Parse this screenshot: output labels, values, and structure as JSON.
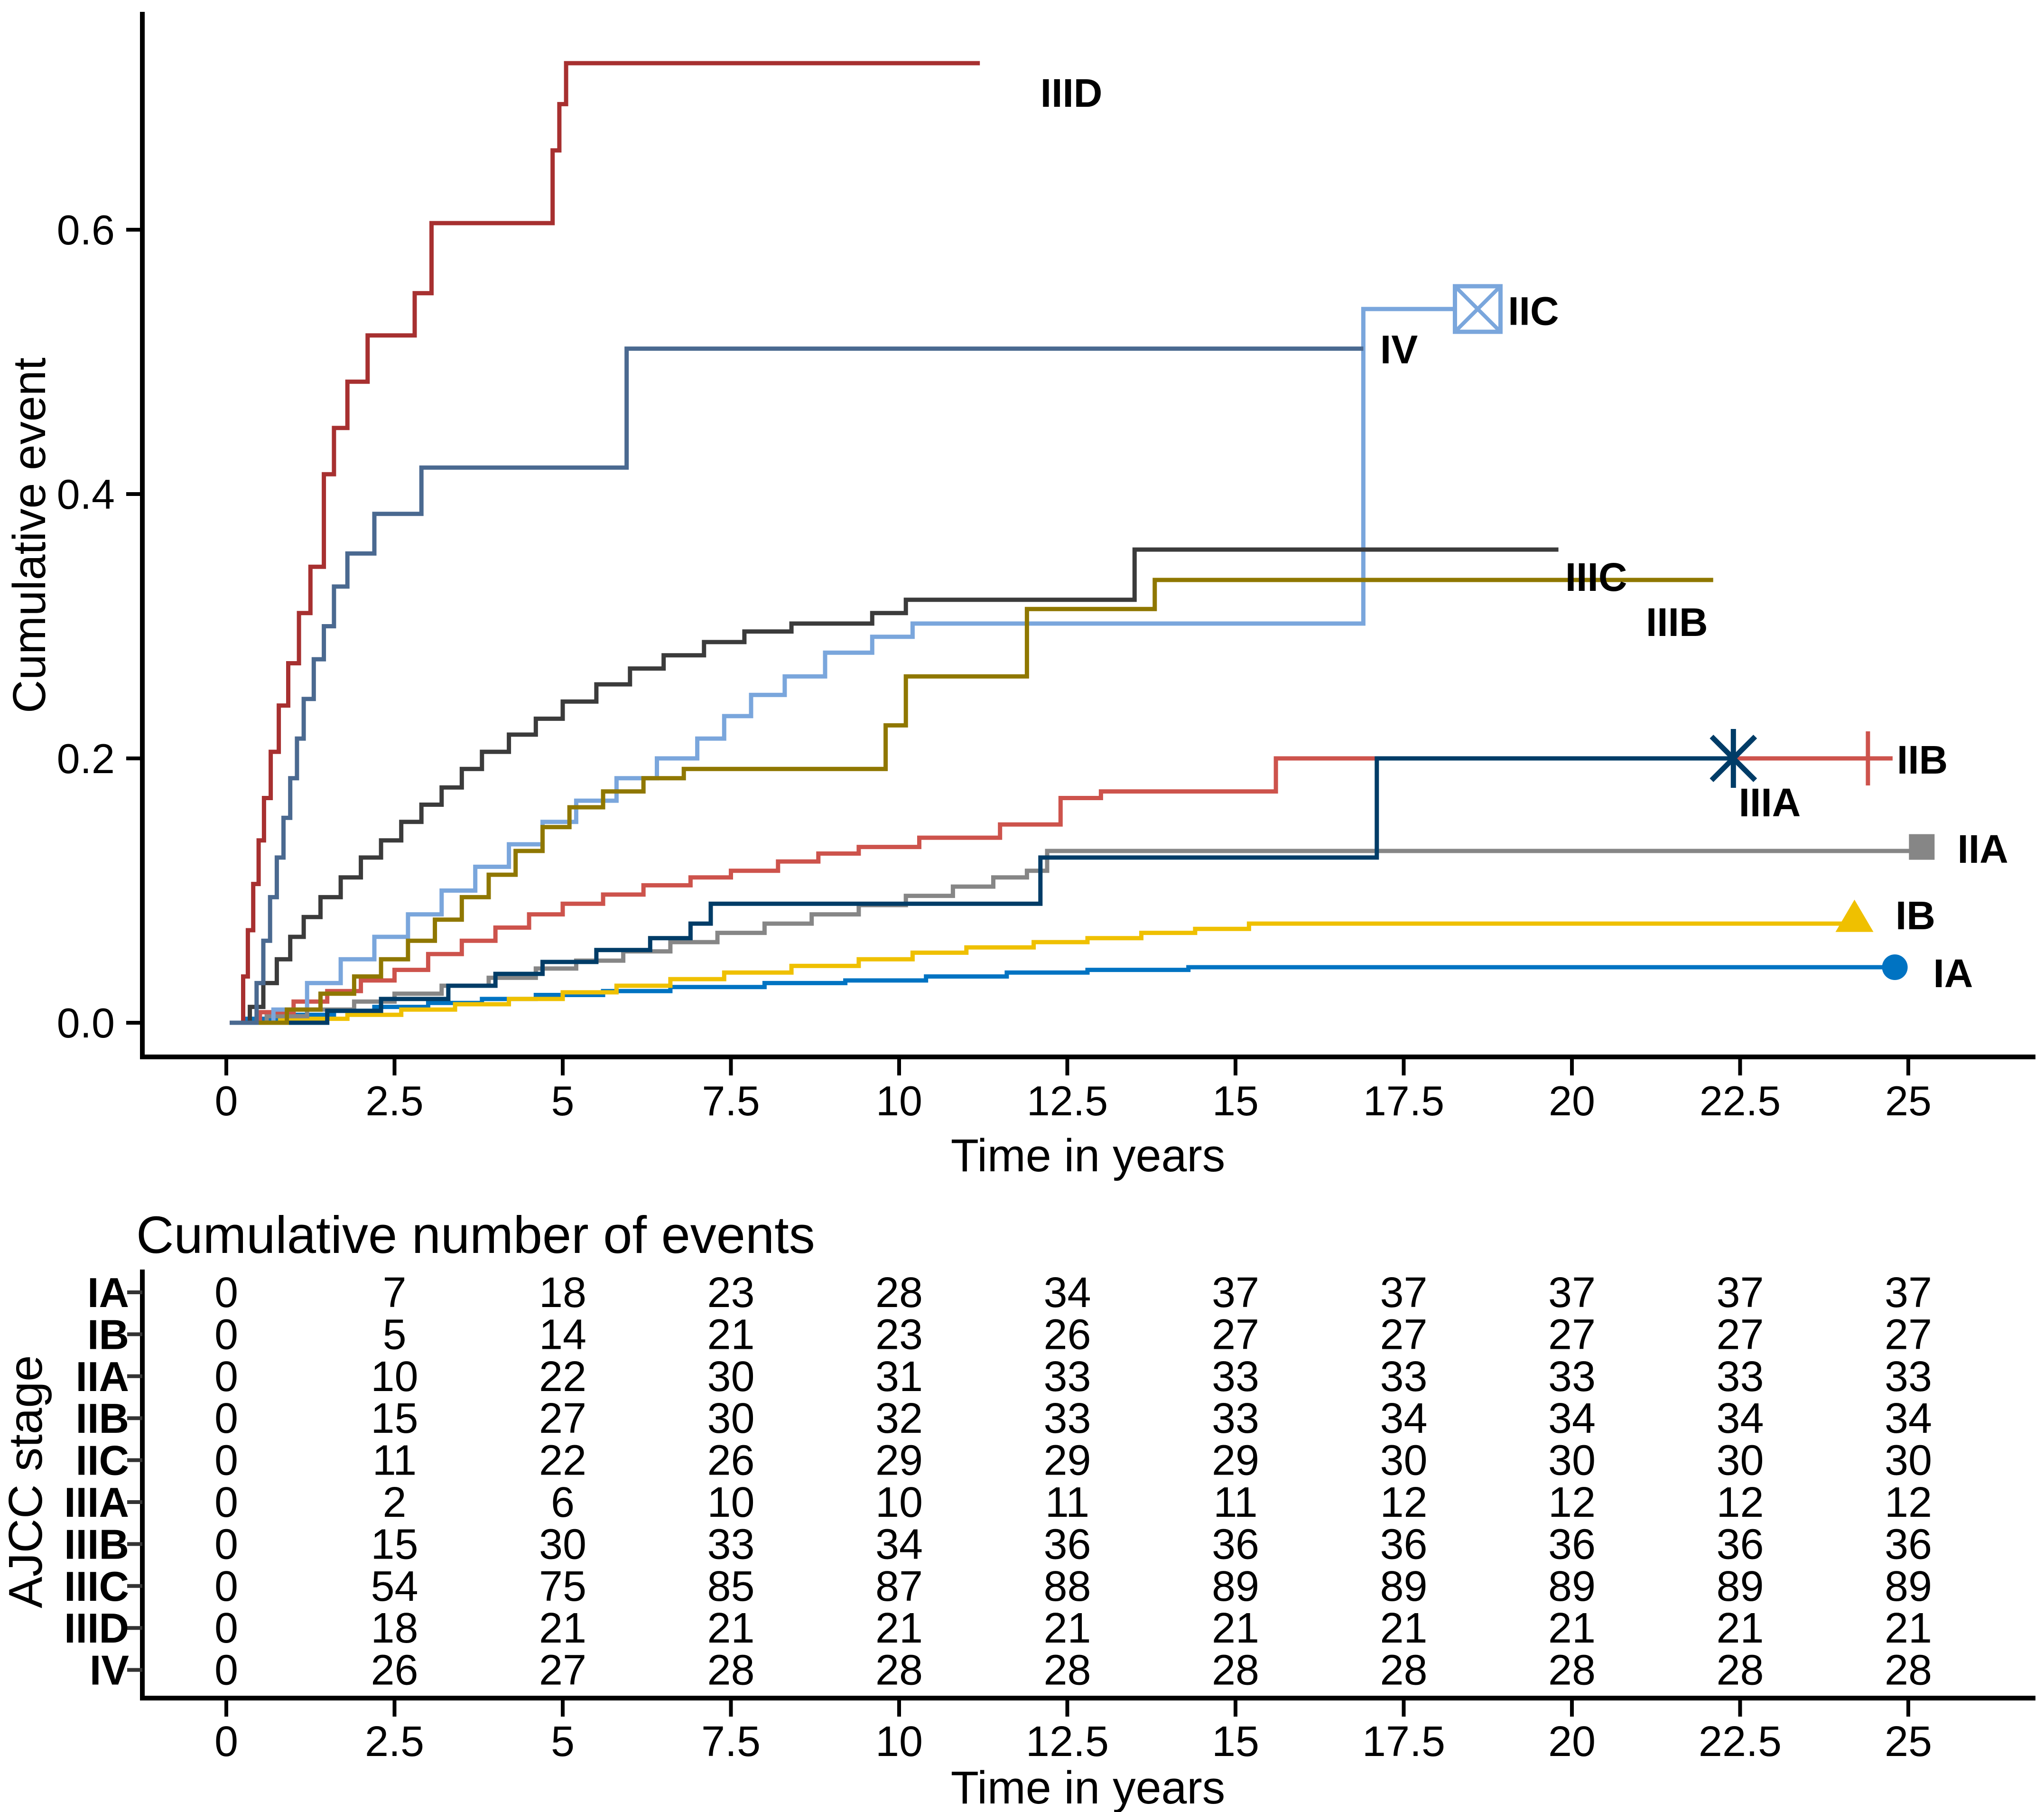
{
  "chart_data": [
    {
      "type": "line",
      "subtype": "cumulative-incidence-step-curves",
      "title": "",
      "xlabel": "Time in years",
      "ylabel": "Cumulative event",
      "x_ticks": [
        "0",
        "2.5",
        "5",
        "7.5",
        "10",
        "12.5",
        "15",
        "17.5",
        "20",
        "22.5",
        "25"
      ],
      "y_ticks": [
        "0.0",
        "0.2",
        "0.4",
        "0.6"
      ],
      "xlim": [
        0,
        25
      ],
      "ylim": [
        0,
        0.75
      ],
      "grid": "off",
      "legend_position": "labels-at-curve-ends",
      "series": [
        {
          "id": "IA",
          "label": "IA",
          "color": "#0073C2",
          "marker": "circle",
          "end": 24.8,
          "marker_at": [
            24.8,
            0.042
          ],
          "label_at": [
            25.37,
            0.0269
          ],
          "steps": [
            [
              0.3,
              0.003
            ],
            [
              1.0,
              0.006
            ],
            [
              1.6,
              0.009
            ],
            [
              2.2,
              0.012
            ],
            [
              3.0,
              0.015
            ],
            [
              3.8,
              0.018
            ],
            [
              4.6,
              0.021
            ],
            [
              5.6,
              0.024
            ],
            [
              6.6,
              0.027
            ],
            [
              8.0,
              0.03
            ],
            [
              9.2,
              0.032
            ],
            [
              10.4,
              0.035
            ],
            [
              11.6,
              0.038
            ],
            [
              12.8,
              0.04
            ],
            [
              14.3,
              0.042
            ]
          ]
        },
        {
          "id": "IB",
          "label": "IB",
          "color": "#EFC000",
          "marker": "triangle",
          "end": 24.2,
          "marker_at": [
            24.2,
            0.0795
          ],
          "label_at": [
            24.81,
            0.0707
          ],
          "steps": [
            [
              0.8,
              0.003
            ],
            [
              1.8,
              0.006
            ],
            [
              2.6,
              0.01
            ],
            [
              3.4,
              0.014
            ],
            [
              4.2,
              0.018
            ],
            [
              5.0,
              0.023
            ],
            [
              5.8,
              0.028
            ],
            [
              6.6,
              0.033
            ],
            [
              7.4,
              0.038
            ],
            [
              8.4,
              0.043
            ],
            [
              9.4,
              0.048
            ],
            [
              10.2,
              0.053
            ],
            [
              11.0,
              0.057
            ],
            [
              12.0,
              0.061
            ],
            [
              12.8,
              0.064
            ],
            [
              13.6,
              0.068
            ],
            [
              14.4,
              0.071
            ],
            [
              15.2,
              0.075
            ]
          ]
        },
        {
          "id": "IIA",
          "label": "IIA",
          "color": "#868686",
          "marker": "square",
          "end": 25.2,
          "marker_at": [
            25.2,
            0.133
          ],
          "label_at": [
            25.73,
            0.121
          ],
          "steps": [
            [
              0.6,
              0.005
            ],
            [
              1.2,
              0.01
            ],
            [
              1.9,
              0.016
            ],
            [
              2.5,
              0.022
            ],
            [
              3.2,
              0.028
            ],
            [
              3.9,
              0.034
            ],
            [
              4.6,
              0.041
            ],
            [
              5.2,
              0.047
            ],
            [
              5.9,
              0.054
            ],
            [
              6.6,
              0.061
            ],
            [
              7.3,
              0.068
            ],
            [
              8.0,
              0.075
            ],
            [
              8.7,
              0.082
            ],
            [
              9.4,
              0.089
            ],
            [
              10.1,
              0.096
            ],
            [
              10.8,
              0.103
            ],
            [
              11.4,
              0.11
            ],
            [
              11.9,
              0.115
            ],
            [
              12.2,
              0.13
            ]
          ]
        },
        {
          "id": "IIB",
          "label": "IIB",
          "color": "#CD534C",
          "marker": "plus",
          "end": 24.4,
          "marker_at": [
            24.4,
            0.2
          ],
          "label_at": [
            24.83,
            0.1885
          ],
          "steps": [
            [
              0.5,
              0.008
            ],
            [
              1.0,
              0.016
            ],
            [
              1.5,
              0.024
            ],
            [
              2.0,
              0.032
            ],
            [
              2.5,
              0.04
            ],
            [
              3.0,
              0.052
            ],
            [
              3.5,
              0.062
            ],
            [
              4.0,
              0.072
            ],
            [
              4.5,
              0.082
            ],
            [
              5.0,
              0.09
            ],
            [
              5.6,
              0.097
            ],
            [
              6.2,
              0.104
            ],
            [
              6.9,
              0.11
            ],
            [
              7.5,
              0.115
            ],
            [
              8.2,
              0.122
            ],
            [
              8.8,
              0.128
            ],
            [
              9.4,
              0.133
            ],
            [
              10.3,
              0.14
            ],
            [
              11.5,
              0.15
            ],
            [
              12.4,
              0.17
            ],
            [
              13.0,
              0.175
            ],
            [
              15.6,
              0.2
            ]
          ]
        },
        {
          "id": "IIC",
          "label": "IIC",
          "color": "#7AA6DC",
          "marker": "boxed-x",
          "end": 18.6,
          "marker_at": [
            18.6,
            0.54
          ],
          "label_at": [
            19.05,
            0.528
          ],
          "steps": [
            [
              0.7,
              0.01
            ],
            [
              1.2,
              0.03
            ],
            [
              1.7,
              0.048
            ],
            [
              2.2,
              0.065
            ],
            [
              2.7,
              0.082
            ],
            [
              3.2,
              0.1
            ],
            [
              3.7,
              0.118
            ],
            [
              4.2,
              0.135
            ],
            [
              4.7,
              0.152
            ],
            [
              5.2,
              0.168
            ],
            [
              5.8,
              0.185
            ],
            [
              6.4,
              0.2
            ],
            [
              7.0,
              0.215
            ],
            [
              7.4,
              0.232
            ],
            [
              7.8,
              0.248
            ],
            [
              8.3,
              0.262
            ],
            [
              8.9,
              0.28
            ],
            [
              9.6,
              0.292
            ],
            [
              10.2,
              0.302
            ],
            [
              16.9,
              0.54
            ]
          ]
        },
        {
          "id": "IIIA",
          "label": "IIIA",
          "color": "#003C67",
          "marker": "asterisk",
          "end": 22.4,
          "marker_at": [
            22.4,
            0.2
          ],
          "label_at": [
            22.48,
            0.1562
          ],
          "steps": [
            [
              1.5,
              0.009
            ],
            [
              2.3,
              0.018
            ],
            [
              3.3,
              0.028
            ],
            [
              4.0,
              0.037
            ],
            [
              4.7,
              0.046
            ],
            [
              5.5,
              0.055
            ],
            [
              6.3,
              0.064
            ],
            [
              6.9,
              0.075
            ],
            [
              7.2,
              0.09
            ],
            [
              12.1,
              0.125
            ],
            [
              17.1,
              0.2
            ]
          ]
        },
        {
          "id": "IIIB",
          "label": "IIIB",
          "color": "#8F7700",
          "marker": "none",
          "end": 22.1,
          "marker_at": null,
          "label_at": [
            21.1,
            0.2926
          ],
          "steps": [
            [
              0.9,
              0.01
            ],
            [
              1.4,
              0.022
            ],
            [
              1.9,
              0.035
            ],
            [
              2.3,
              0.048
            ],
            [
              2.7,
              0.062
            ],
            [
              3.1,
              0.078
            ],
            [
              3.5,
              0.095
            ],
            [
              3.9,
              0.112
            ],
            [
              4.3,
              0.13
            ],
            [
              4.7,
              0.148
            ],
            [
              5.1,
              0.163
            ],
            [
              5.6,
              0.175
            ],
            [
              6.2,
              0.185
            ],
            [
              6.8,
              0.192
            ],
            [
              9.8,
              0.225
            ],
            [
              10.1,
              0.262
            ],
            [
              11.9,
              0.313
            ],
            [
              13.8,
              0.335
            ]
          ]
        },
        {
          "id": "IIIC",
          "label": "IIIC",
          "color": "#3B3B3B",
          "marker": "none",
          "end": 19.8,
          "marker_at": null,
          "label_at": [
            19.9,
            0.3267
          ],
          "steps": [
            [
              0.35,
              0.012
            ],
            [
              0.55,
              0.03
            ],
            [
              0.75,
              0.048
            ],
            [
              0.95,
              0.065
            ],
            [
              1.15,
              0.08
            ],
            [
              1.4,
              0.095
            ],
            [
              1.7,
              0.11
            ],
            [
              2.0,
              0.125
            ],
            [
              2.3,
              0.138
            ],
            [
              2.6,
              0.152
            ],
            [
              2.9,
              0.165
            ],
            [
              3.2,
              0.178
            ],
            [
              3.5,
              0.192
            ],
            [
              3.8,
              0.205
            ],
            [
              4.2,
              0.218
            ],
            [
              4.6,
              0.23
            ],
            [
              5.0,
              0.243
            ],
            [
              5.5,
              0.256
            ],
            [
              6.0,
              0.268
            ],
            [
              6.5,
              0.278
            ],
            [
              7.1,
              0.288
            ],
            [
              7.7,
              0.296
            ],
            [
              8.4,
              0.302
            ],
            [
              9.6,
              0.31
            ],
            [
              10.1,
              0.32
            ],
            [
              13.5,
              0.358
            ]
          ]
        },
        {
          "id": "IIID",
          "label": "IIID",
          "color": "#A73030",
          "marker": "none",
          "end": 11.2,
          "marker_at": null,
          "label_at": [
            12.1,
            0.693
          ],
          "steps": [
            [
              0.25,
              0.035
            ],
            [
              0.32,
              0.07
            ],
            [
              0.4,
              0.105
            ],
            [
              0.48,
              0.138
            ],
            [
              0.56,
              0.17
            ],
            [
              0.66,
              0.205
            ],
            [
              0.78,
              0.24
            ],
            [
              0.92,
              0.272
            ],
            [
              1.08,
              0.31
            ],
            [
              1.25,
              0.345
            ],
            [
              1.45,
              0.415
            ],
            [
              1.6,
              0.45
            ],
            [
              1.8,
              0.485
            ],
            [
              2.1,
              0.52
            ],
            [
              2.8,
              0.552
            ],
            [
              3.05,
              0.605
            ],
            [
              4.85,
              0.66
            ],
            [
              4.95,
              0.695
            ],
            [
              5.05,
              0.726
            ]
          ]
        },
        {
          "id": "IV",
          "label": "IV",
          "color": "#4A6990",
          "marker": "none",
          "end": 16.9,
          "marker_at": null,
          "label_at": [
            17.15,
            0.499
          ],
          "steps": [
            [
              0.45,
              0.03
            ],
            [
              0.55,
              0.062
            ],
            [
              0.65,
              0.095
            ],
            [
              0.75,
              0.125
            ],
            [
              0.85,
              0.155
            ],
            [
              0.95,
              0.185
            ],
            [
              1.05,
              0.215
            ],
            [
              1.15,
              0.245
            ],
            [
              1.3,
              0.275
            ],
            [
              1.45,
              0.3
            ],
            [
              1.6,
              0.33
            ],
            [
              1.8,
              0.355
            ],
            [
              2.2,
              0.385
            ],
            [
              2.9,
              0.42
            ],
            [
              5.95,
              0.51
            ]
          ]
        }
      ]
    },
    {
      "type": "table",
      "title": "Cumulative number of events",
      "ylabel": "AJCC stage",
      "xlabel": "Time in years",
      "columns": [
        "0",
        "2.5",
        "5",
        "7.5",
        "10",
        "12.5",
        "15",
        "17.5",
        "20",
        "22.5",
        "25"
      ],
      "rows": [
        {
          "label": "IA",
          "color": "#0073C2",
          "values": [
            "0",
            "7",
            "18",
            "23",
            "28",
            "34",
            "37",
            "37",
            "37",
            "37",
            "37"
          ]
        },
        {
          "label": "IB",
          "color": "#EFC000",
          "values": [
            "0",
            "5",
            "14",
            "21",
            "23",
            "26",
            "27",
            "27",
            "27",
            "27",
            "27"
          ]
        },
        {
          "label": "IIA",
          "color": "#868686",
          "values": [
            "0",
            "10",
            "22",
            "30",
            "31",
            "33",
            "33",
            "33",
            "33",
            "33",
            "33"
          ]
        },
        {
          "label": "IIB",
          "color": "#CD534C",
          "values": [
            "0",
            "15",
            "27",
            "30",
            "32",
            "33",
            "33",
            "34",
            "34",
            "34",
            "34"
          ]
        },
        {
          "label": "IIC",
          "color": "#7AA6DC",
          "values": [
            "0",
            "11",
            "22",
            "26",
            "29",
            "29",
            "29",
            "30",
            "30",
            "30",
            "30"
          ]
        },
        {
          "label": "IIIA",
          "color": "#003C67",
          "values": [
            "0",
            "2",
            "6",
            "10",
            "10",
            "11",
            "11",
            "12",
            "12",
            "12",
            "12"
          ]
        },
        {
          "label": "IIIB",
          "color": "#8F7700",
          "values": [
            "0",
            "15",
            "30",
            "33",
            "34",
            "36",
            "36",
            "36",
            "36",
            "36",
            "36"
          ]
        },
        {
          "label": "IIIC",
          "color": "#3B3B3B",
          "values": [
            "0",
            "54",
            "75",
            "85",
            "87",
            "88",
            "89",
            "89",
            "89",
            "89",
            "89"
          ]
        },
        {
          "label": "IIID",
          "color": "#A73030",
          "values": [
            "0",
            "18",
            "21",
            "21",
            "21",
            "21",
            "21",
            "21",
            "21",
            "21",
            "21"
          ]
        },
        {
          "label": "IV",
          "color": "#4A6990",
          "values": [
            "0",
            "26",
            "27",
            "28",
            "28",
            "28",
            "28",
            "28",
            "28",
            "28",
            "28"
          ]
        }
      ]
    }
  ]
}
